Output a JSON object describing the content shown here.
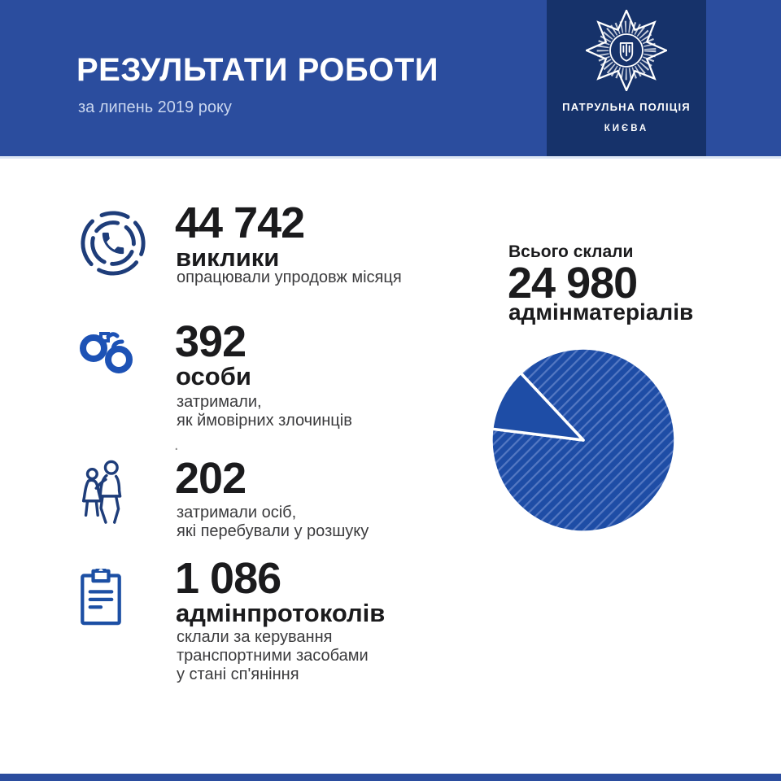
{
  "header": {
    "title": "РЕЗУЛЬТАТИ РОБОТИ",
    "subtitle": "за липень 2019 року",
    "colors": {
      "bg": "#2b4d9e",
      "logo_panel": "#16326a"
    },
    "logo": {
      "badge_icon": "police-star-badge-icon",
      "org_line1": "ПАТРУЛЬНА ПОЛІЦІЯ",
      "org_line2": "КИЄВА"
    }
  },
  "stats": [
    {
      "icon": "phone-call-icon",
      "value": "44 742",
      "label": "виклики",
      "description": "опрацювали упродовж місяця"
    },
    {
      "icon": "handcuffs-icon",
      "value": "392",
      "label": "особи",
      "description": "затримали,\nяк ймовірних злочинців",
      "footnote_dot": "."
    },
    {
      "icon": "escorted-people-icon",
      "value": "202",
      "label": "",
      "description": "затримали осіб,\nякі перебували у розшуку"
    },
    {
      "icon": "clipboard-icon",
      "value": "1 086",
      "label": "адмінпротоколів",
      "description": "склали за керування\nтранспортними засобами\nу стані сп'яніння"
    }
  ],
  "chart_data": {
    "type": "pie",
    "title": "Всього склали",
    "total_value": "24 980",
    "total_label": "адмінматеріалів",
    "slices": [
      {
        "percent": 11,
        "style": "solid"
      },
      {
        "percent": 89,
        "style": "hatched-diagonal"
      }
    ],
    "slice_start_deg": 133,
    "slice_span_deg": 40,
    "legend": "none",
    "colors": {
      "pie_fill": "#1e4da6",
      "hatch_line": "#5478c2",
      "separator": "#ffffff"
    }
  },
  "footer": {
    "bar_color": "#2b4d9e"
  }
}
